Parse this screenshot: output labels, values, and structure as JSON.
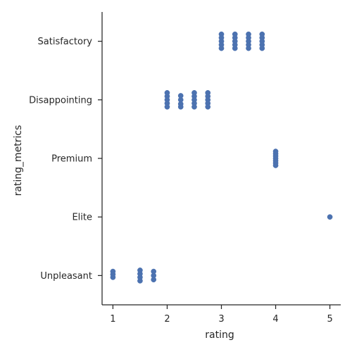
{
  "chart_data": {
    "type": "scatter",
    "title": "",
    "xlabel": "rating",
    "ylabel": "rating_metrics",
    "xlim": [
      0.8,
      5.2
    ],
    "x_ticks": [
      1,
      2,
      3,
      4,
      5
    ],
    "categories": [
      "Satisfactory",
      "Disappointing",
      "Premium",
      "Elite",
      "Unpleasant"
    ],
    "grid": false,
    "legend": "none",
    "point_color": "#4c72b0",
    "points": [
      {
        "category": "Satisfactory",
        "x": 3.0,
        "y_jitter": -0.12
      },
      {
        "category": "Satisfactory",
        "x": 3.0,
        "y_jitter": -0.06
      },
      {
        "category": "Satisfactory",
        "x": 3.0,
        "y_jitter": 0.0
      },
      {
        "category": "Satisfactory",
        "x": 3.0,
        "y_jitter": 0.06
      },
      {
        "category": "Satisfactory",
        "x": 3.0,
        "y_jitter": 0.12
      },
      {
        "category": "Satisfactory",
        "x": 3.25,
        "y_jitter": -0.12
      },
      {
        "category": "Satisfactory",
        "x": 3.25,
        "y_jitter": -0.06
      },
      {
        "category": "Satisfactory",
        "x": 3.25,
        "y_jitter": 0.0
      },
      {
        "category": "Satisfactory",
        "x": 3.25,
        "y_jitter": 0.06
      },
      {
        "category": "Satisfactory",
        "x": 3.25,
        "y_jitter": 0.12
      },
      {
        "category": "Satisfactory",
        "x": 3.5,
        "y_jitter": -0.12
      },
      {
        "category": "Satisfactory",
        "x": 3.5,
        "y_jitter": -0.06
      },
      {
        "category": "Satisfactory",
        "x": 3.5,
        "y_jitter": 0.0
      },
      {
        "category": "Satisfactory",
        "x": 3.5,
        "y_jitter": 0.06
      },
      {
        "category": "Satisfactory",
        "x": 3.5,
        "y_jitter": 0.12
      },
      {
        "category": "Satisfactory",
        "x": 3.75,
        "y_jitter": -0.12
      },
      {
        "category": "Satisfactory",
        "x": 3.75,
        "y_jitter": -0.06
      },
      {
        "category": "Satisfactory",
        "x": 3.75,
        "y_jitter": 0.0
      },
      {
        "category": "Satisfactory",
        "x": 3.75,
        "y_jitter": 0.06
      },
      {
        "category": "Satisfactory",
        "x": 3.75,
        "y_jitter": 0.12
      },
      {
        "category": "Disappointing",
        "x": 2.0,
        "y_jitter": -0.12
      },
      {
        "category": "Disappointing",
        "x": 2.0,
        "y_jitter": -0.06
      },
      {
        "category": "Disappointing",
        "x": 2.0,
        "y_jitter": 0.0
      },
      {
        "category": "Disappointing",
        "x": 2.0,
        "y_jitter": 0.06
      },
      {
        "category": "Disappointing",
        "x": 2.0,
        "y_jitter": 0.12
      },
      {
        "category": "Disappointing",
        "x": 2.25,
        "y_jitter": -0.07
      },
      {
        "category": "Disappointing",
        "x": 2.25,
        "y_jitter": 0.0
      },
      {
        "category": "Disappointing",
        "x": 2.25,
        "y_jitter": 0.07
      },
      {
        "category": "Disappointing",
        "x": 2.25,
        "y_jitter": 0.12
      },
      {
        "category": "Disappointing",
        "x": 2.5,
        "y_jitter": -0.12
      },
      {
        "category": "Disappointing",
        "x": 2.5,
        "y_jitter": -0.06
      },
      {
        "category": "Disappointing",
        "x": 2.5,
        "y_jitter": 0.0
      },
      {
        "category": "Disappointing",
        "x": 2.5,
        "y_jitter": 0.06
      },
      {
        "category": "Disappointing",
        "x": 2.5,
        "y_jitter": 0.12
      },
      {
        "category": "Disappointing",
        "x": 2.75,
        "y_jitter": -0.12
      },
      {
        "category": "Disappointing",
        "x": 2.75,
        "y_jitter": -0.06
      },
      {
        "category": "Disappointing",
        "x": 2.75,
        "y_jitter": 0.0
      },
      {
        "category": "Disappointing",
        "x": 2.75,
        "y_jitter": 0.06
      },
      {
        "category": "Disappointing",
        "x": 2.75,
        "y_jitter": 0.12
      },
      {
        "category": "Premium",
        "x": 4.0,
        "y_jitter": -0.12
      },
      {
        "category": "Premium",
        "x": 4.0,
        "y_jitter": -0.08
      },
      {
        "category": "Premium",
        "x": 4.0,
        "y_jitter": -0.04
      },
      {
        "category": "Premium",
        "x": 4.0,
        "y_jitter": 0.0
      },
      {
        "category": "Premium",
        "x": 4.0,
        "y_jitter": 0.04
      },
      {
        "category": "Premium",
        "x": 4.0,
        "y_jitter": 0.08
      },
      {
        "category": "Premium",
        "x": 4.0,
        "y_jitter": 0.12
      },
      {
        "category": "Elite",
        "x": 5.0,
        "y_jitter": 0.0
      },
      {
        "category": "Unpleasant",
        "x": 1.0,
        "y_jitter": -0.07
      },
      {
        "category": "Unpleasant",
        "x": 1.0,
        "y_jitter": -0.02
      },
      {
        "category": "Unpleasant",
        "x": 1.0,
        "y_jitter": 0.03
      },
      {
        "category": "Unpleasant",
        "x": 1.5,
        "y_jitter": -0.09
      },
      {
        "category": "Unpleasant",
        "x": 1.5,
        "y_jitter": -0.03
      },
      {
        "category": "Unpleasant",
        "x": 1.5,
        "y_jitter": 0.03
      },
      {
        "category": "Unpleasant",
        "x": 1.5,
        "y_jitter": 0.09
      },
      {
        "category": "Unpleasant",
        "x": 1.75,
        "y_jitter": -0.07
      },
      {
        "category": "Unpleasant",
        "x": 1.75,
        "y_jitter": 0.0
      },
      {
        "category": "Unpleasant",
        "x": 1.75,
        "y_jitter": 0.07
      }
    ]
  }
}
